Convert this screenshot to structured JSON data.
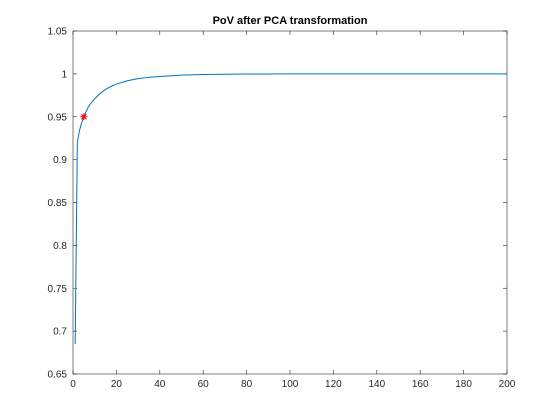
{
  "chart_data": {
    "type": "line",
    "title": "PoV after PCA transformation",
    "xlabel": "",
    "ylabel": "",
    "xlim": [
      0,
      200
    ],
    "ylim": [
      0.65,
      1.05
    ],
    "x_ticks": [
      0,
      20,
      40,
      60,
      80,
      100,
      120,
      140,
      160,
      180,
      200
    ],
    "y_ticks": [
      0.65,
      0.7,
      0.75,
      0.8,
      0.85,
      0.9,
      0.95,
      1,
      1.05
    ],
    "x_tick_labels": [
      "0",
      "20",
      "40",
      "60",
      "80",
      "100",
      "120",
      "140",
      "160",
      "180",
      "200"
    ],
    "y_tick_labels": [
      "0.65",
      "0.7",
      "0.75",
      "0.8",
      "0.85",
      "0.9",
      "0.95",
      "1",
      "1.05"
    ],
    "grid": false,
    "box": true,
    "series": [
      {
        "style": "line",
        "color": "#0072BD",
        "x": [
          1,
          2,
          3,
          4,
          5,
          6,
          7,
          8,
          10,
          12,
          15,
          18,
          20,
          25,
          30,
          35,
          40,
          50,
          60,
          70,
          80,
          90,
          100,
          120,
          140,
          160,
          180,
          200
        ],
        "y": [
          0.685,
          0.92,
          0.934,
          0.943,
          0.95,
          0.956,
          0.961,
          0.965,
          0.971,
          0.976,
          0.982,
          0.986,
          0.988,
          0.992,
          0.9945,
          0.996,
          0.997,
          0.9985,
          0.9992,
          0.9996,
          0.9998,
          0.9999,
          1.0,
          1.0,
          1.0,
          1.0,
          1.0,
          1.0
        ]
      },
      {
        "style": "marker",
        "marker": "*",
        "color": "#ff0000",
        "x": [
          5
        ],
        "y": [
          0.95
        ]
      }
    ]
  }
}
